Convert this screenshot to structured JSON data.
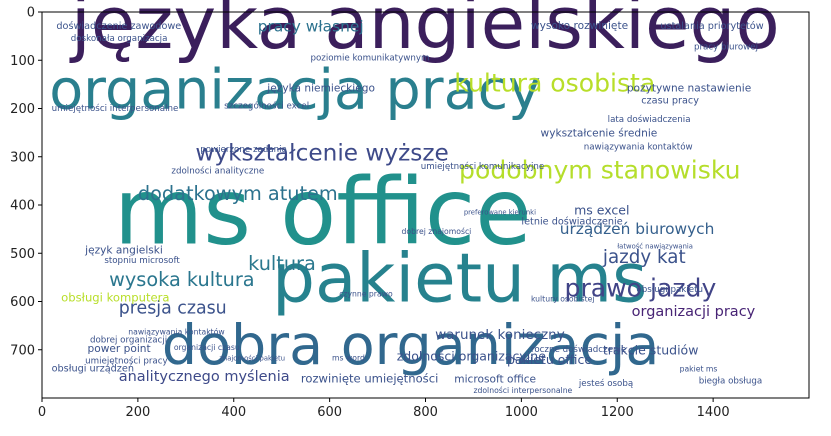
{
  "chart_data": {
    "type": "wordcloud",
    "x_ticks": [
      0,
      200,
      400,
      600,
      800,
      1000,
      1200,
      1400
    ],
    "y_ticks": [
      0,
      100,
      200,
      300,
      400,
      500,
      600,
      700
    ],
    "xlim": [
      0,
      1600
    ],
    "ylim": [
      800,
      0
    ],
    "background": "#ffffff",
    "words": [
      {
        "text": "języka angielskiego",
        "x": 60,
        "y": 75,
        "size": 150,
        "color": "#3b1f5c"
      },
      {
        "text": "organizacja pracy",
        "x": 15,
        "y": 200,
        "size": 115,
        "color": "#2a7f8e"
      },
      {
        "text": "ms office",
        "x": 150,
        "y": 480,
        "size": 190,
        "color": "#21918c"
      },
      {
        "text": "pakietu ms",
        "x": 480,
        "y": 600,
        "size": 140,
        "color": "#26828e"
      },
      {
        "text": "dobra organizacja",
        "x": 250,
        "y": 730,
        "size": 115,
        "color": "#31688e"
      },
      {
        "text": "kultura osobista",
        "x": 860,
        "y": 165,
        "size": 52,
        "color": "#b8de29"
      },
      {
        "text": "podobnym stanowisku",
        "x": 870,
        "y": 345,
        "size": 52,
        "color": "#b5de2b"
      },
      {
        "text": "wykształcenie wyższe",
        "x": 320,
        "y": 308,
        "size": 48,
        "color": "#3e4a89"
      },
      {
        "text": "dodatkowym atutem",
        "x": 200,
        "y": 390,
        "size": 40,
        "color": "#2c728e"
      },
      {
        "text": "wysoka kultura",
        "x": 140,
        "y": 568,
        "size": 40,
        "color": "#2a768e"
      },
      {
        "text": "presja czasu",
        "x": 160,
        "y": 625,
        "size": 36,
        "color": "#3b528b"
      },
      {
        "text": "prawo jazdy",
        "x": 1090,
        "y": 590,
        "size": 52,
        "color": "#414487"
      },
      {
        "text": "jazdy kat",
        "x": 1170,
        "y": 520,
        "size": 38,
        "color": "#3b528b"
      },
      {
        "text": "urządzeń biurowych",
        "x": 1080,
        "y": 460,
        "size": 32,
        "color": "#35608d"
      },
      {
        "text": "organizacji pracy",
        "x": 1230,
        "y": 630,
        "size": 30,
        "color": "#482475"
      },
      {
        "text": "ms excel",
        "x": 1110,
        "y": 420,
        "size": 26,
        "color": "#3b528b"
      },
      {
        "text": "pracy własnej",
        "x": 450,
        "y": 40,
        "size": 32,
        "color": "#2c728e"
      },
      {
        "text": "analitycznego myślenia",
        "x": 160,
        "y": 765,
        "size": 30,
        "color": "#3e4a89"
      },
      {
        "text": "rozwinięte umiejętności",
        "x": 540,
        "y": 768,
        "size": 24,
        "color": "#3b528b"
      },
      {
        "text": "warunek konieczny",
        "x": 820,
        "y": 678,
        "size": 28,
        "color": "#3b528b"
      },
      {
        "text": "zdolności organizacyjne",
        "x": 740,
        "y": 722,
        "size": 26,
        "color": "#3b528b"
      },
      {
        "text": "pakietu office",
        "x": 970,
        "y": 730,
        "size": 26,
        "color": "#3b528b"
      },
      {
        "text": "trakcie studiów",
        "x": 1170,
        "y": 710,
        "size": 26,
        "color": "#3b528b"
      },
      {
        "text": "kultura",
        "x": 430,
        "y": 535,
        "size": 40,
        "color": "#2a788e"
      },
      {
        "text": "ms word",
        "x": 605,
        "y": 722,
        "size": 16,
        "color": "#3b528b"
      },
      {
        "text": "power point",
        "x": 95,
        "y": 705,
        "size": 22,
        "color": "#3b528b"
      },
      {
        "text": "obsługi urządzeń",
        "x": 20,
        "y": 745,
        "size": 20,
        "color": "#3b528b"
      },
      {
        "text": "umiejętności pracy",
        "x": 90,
        "y": 728,
        "size": 18,
        "color": "#3b528b"
      },
      {
        "text": "dobrej organizacji",
        "x": 100,
        "y": 685,
        "size": 18,
        "color": "#3b528b"
      },
      {
        "text": "microsoft office",
        "x": 860,
        "y": 768,
        "size": 22,
        "color": "#3b528b"
      },
      {
        "text": "jesteś osobą",
        "x": 1120,
        "y": 775,
        "size": 18,
        "color": "#3b528b"
      },
      {
        "text": "biegła obsługa",
        "x": 1370,
        "y": 770,
        "size": 18,
        "color": "#3b528b"
      },
      {
        "text": "roczne doświadczenie",
        "x": 1020,
        "y": 705,
        "size": 18,
        "color": "#3b528b"
      },
      {
        "text": "obsługi pakietu",
        "x": 1240,
        "y": 580,
        "size": 18,
        "color": "#3b528b"
      },
      {
        "text": "letnie doświadczenie",
        "x": 1000,
        "y": 440,
        "size": 20,
        "color": "#3b528b"
      },
      {
        "text": "nawiązywania kontaktów",
        "x": 1130,
        "y": 285,
        "size": 18,
        "color": "#3b528b"
      },
      {
        "text": "wykształcenie średnie",
        "x": 1040,
        "y": 258,
        "size": 22,
        "color": "#3b528b"
      },
      {
        "text": "lata doświadczenia",
        "x": 1180,
        "y": 228,
        "size": 18,
        "color": "#3b528b"
      },
      {
        "text": "czasu pracy",
        "x": 1250,
        "y": 190,
        "size": 20,
        "color": "#3b528b"
      },
      {
        "text": "pozytywne nastawienie",
        "x": 1220,
        "y": 165,
        "size": 22,
        "color": "#3b528b"
      },
      {
        "text": "doświadczenie zawodowe",
        "x": 30,
        "y": 35,
        "size": 20,
        "color": "#3b528b"
      },
      {
        "text": "doskonała organizacja",
        "x": 60,
        "y": 60,
        "size": 18,
        "color": "#3b528b"
      },
      {
        "text": "wysoko rozwinięte",
        "x": 1020,
        "y": 35,
        "size": 22,
        "color": "#3b528b"
      },
      {
        "text": "ustalania priorytetów",
        "x": 1290,
        "y": 35,
        "size": 20,
        "color": "#3b528b"
      },
      {
        "text": "pracy biurowej",
        "x": 1360,
        "y": 78,
        "size": 18,
        "color": "#3b528b"
      },
      {
        "text": "poziomie komunikatywnym",
        "x": 560,
        "y": 100,
        "size": 18,
        "color": "#3b528b"
      },
      {
        "text": "języka niemieckiego",
        "x": 470,
        "y": 165,
        "size": 22,
        "color": "#3b528b"
      },
      {
        "text": "umiejętności interpersonalne",
        "x": 20,
        "y": 205,
        "size": 18,
        "color": "#3b528b"
      },
      {
        "text": "szczególności excel",
        "x": 380,
        "y": 200,
        "size": 18,
        "color": "#3b528b"
      },
      {
        "text": "umiejętności komunikacyjne",
        "x": 790,
        "y": 325,
        "size": 18,
        "color": "#3b528b"
      },
      {
        "text": "powierzone zadania",
        "x": 330,
        "y": 290,
        "size": 18,
        "color": "#3b528b"
      },
      {
        "text": "zdolności analityczne",
        "x": 270,
        "y": 335,
        "size": 18,
        "color": "#3b528b"
      },
      {
        "text": "język angielski",
        "x": 90,
        "y": 500,
        "size": 22,
        "color": "#3b528b"
      },
      {
        "text": "obsługi komputera",
        "x": 40,
        "y": 600,
        "size": 24,
        "color": "#b8de29"
      },
      {
        "text": "stopniu microsoft",
        "x": 130,
        "y": 520,
        "size": 18,
        "color": "#3b528b"
      },
      {
        "text": "nawiązywania kontaktów",
        "x": 180,
        "y": 668,
        "size": 16,
        "color": "#3b528b"
      },
      {
        "text": "organizacji czasu",
        "x": 275,
        "y": 700,
        "size": 16,
        "color": "#3b528b"
      },
      {
        "text": "znajomości pakietu",
        "x": 370,
        "y": 722,
        "size": 14,
        "color": "#3b528b"
      },
      {
        "text": "czynne prawo",
        "x": 620,
        "y": 590,
        "size": 16,
        "color": "#3b528b"
      },
      {
        "text": "dobrej znajomości",
        "x": 750,
        "y": 460,
        "size": 16,
        "color": "#3b528b"
      },
      {
        "text": "preferowane kierunki",
        "x": 880,
        "y": 420,
        "size": 14,
        "color": "#3b528b"
      },
      {
        "text": "łatwość nawiązywania",
        "x": 1200,
        "y": 490,
        "size": 14,
        "color": "#3b528b"
      },
      {
        "text": "kultury osobistej",
        "x": 1020,
        "y": 600,
        "size": 16,
        "color": "#3b528b"
      },
      {
        "text": "zdolności interpersonalne",
        "x": 900,
        "y": 790,
        "size": 16,
        "color": "#3b528b"
      },
      {
        "text": "pakiet ms",
        "x": 1330,
        "y": 745,
        "size": 16,
        "color": "#3b528b"
      }
    ]
  }
}
